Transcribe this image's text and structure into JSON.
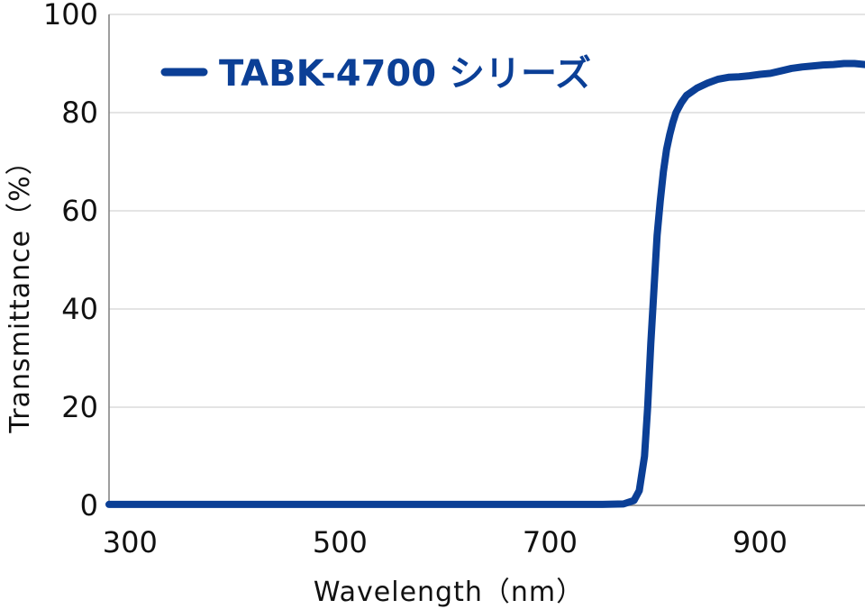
{
  "chart_data": {
    "type": "line",
    "title": "",
    "xlabel": "Wavelength（nm）",
    "ylabel": "Transmittance（%）",
    "xlim": [
      280,
      1000
    ],
    "ylim": [
      0,
      100
    ],
    "x_ticks": [
      300,
      500,
      700,
      900
    ],
    "y_ticks": [
      0,
      20,
      40,
      60,
      80,
      100
    ],
    "grid": "horizontal",
    "legend": "top-left",
    "colors": {
      "series": "#0b3f96",
      "grid": "#c8c8c8",
      "axis": "#7f7f7f"
    },
    "series": [
      {
        "name": "TABK-4700 シリーズ",
        "x": [
          280,
          300,
          350,
          400,
          450,
          500,
          550,
          600,
          650,
          700,
          750,
          770,
          780,
          785,
          790,
          793,
          796,
          799,
          802,
          805,
          808,
          811,
          814,
          817,
          820,
          825,
          830,
          840,
          850,
          860,
          870,
          880,
          890,
          900,
          910,
          920,
          930,
          940,
          950,
          960,
          970,
          980,
          990,
          1000
        ],
        "values": [
          0.2,
          0.2,
          0.2,
          0.2,
          0.2,
          0.2,
          0.2,
          0.2,
          0.2,
          0.2,
          0.2,
          0.3,
          1.0,
          3.0,
          10.0,
          20.0,
          33.0,
          44.0,
          55.0,
          62.0,
          68.0,
          72.5,
          75.5,
          78.0,
          80.0,
          82.0,
          83.5,
          85.0,
          86.0,
          86.8,
          87.2,
          87.3,
          87.5,
          87.8,
          88.0,
          88.5,
          89.0,
          89.3,
          89.5,
          89.7,
          89.8,
          90.0,
          90.0,
          89.8
        ]
      }
    ]
  }
}
